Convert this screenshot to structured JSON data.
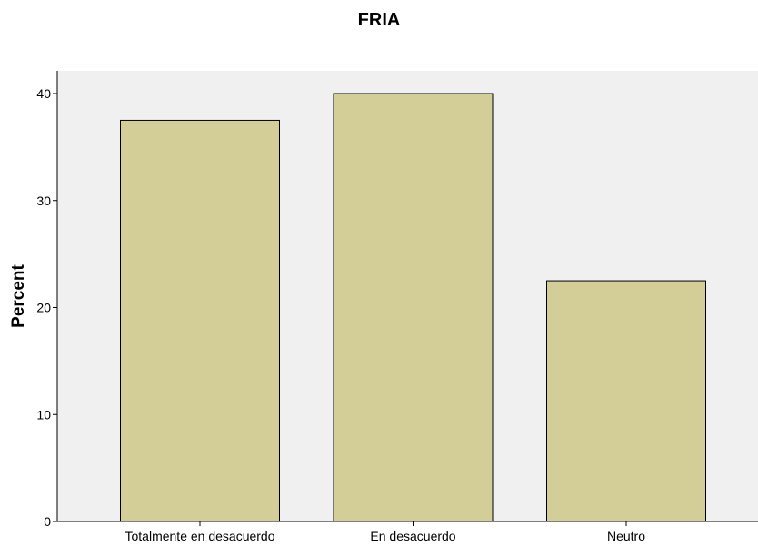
{
  "chart_data": {
    "type": "bar",
    "title": "FRIA",
    "xlabel": "",
    "ylabel": "Percent",
    "categories": [
      "Totalmente en desacuerdo",
      "En desacuerdo",
      "Neutro"
    ],
    "values": [
      37.5,
      40.0,
      22.5
    ],
    "ylim": [
      0,
      40
    ],
    "yticks": [
      "0",
      "10",
      "20",
      "30",
      "40"
    ],
    "grid": false,
    "legend": "none",
    "colors": {
      "bar_fill": "#d3ce98",
      "plot_background": "#f0f0f0",
      "axis": "#000000"
    }
  }
}
